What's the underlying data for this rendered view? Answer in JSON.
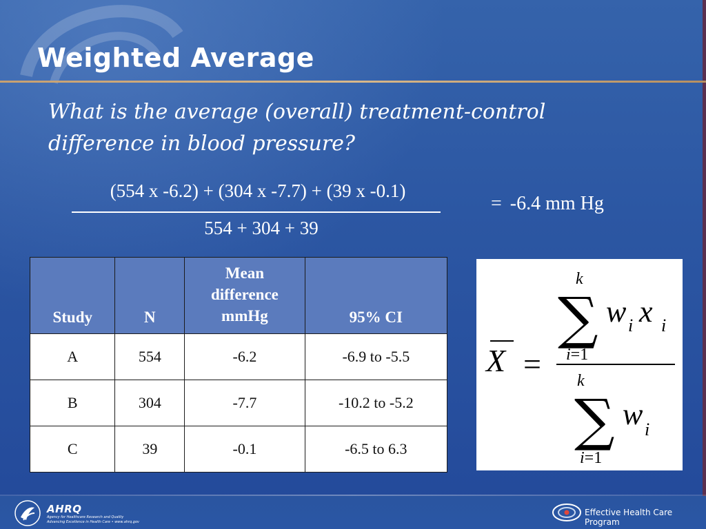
{
  "slide": {
    "title": "Weighted Average",
    "question": "What is the average (overall) treatment-control difference in blood pressure?"
  },
  "calculation": {
    "numerator": "(554 x -6.2) + (304 x -7.7) + (39 x -0.1)",
    "denominator": "554 + 304 + 39",
    "equals": "=",
    "result": "-6.4 mm Hg"
  },
  "table": {
    "headers": {
      "study": "Study",
      "n": "N",
      "mean_line1": "Mean",
      "mean_line2": "difference",
      "mean_line3": "mmHg",
      "ci": "95% CI"
    },
    "rows": [
      {
        "study": "A",
        "n": "554",
        "mean": "-6.2",
        "ci": "-6.9 to -5.5"
      },
      {
        "study": "B",
        "n": "304",
        "mean": "-7.7",
        "ci": "-10.2 to -5.2"
      },
      {
        "study": "C",
        "n": "39",
        "mean": "-0.1",
        "ci": "-6.5 to 6.3"
      }
    ]
  },
  "formula": {
    "lhs": "X",
    "equals": "=",
    "upper_limit": "k",
    "lower_index": "i",
    "lower_eq": "=",
    "lower_start": "1",
    "sigma": "∑",
    "weight": "w",
    "value": "x",
    "subscript": "i"
  },
  "footer": {
    "agency_name": "AHRQ",
    "agency_sub1": "Agency for Healthcare Research and Quality",
    "agency_sub2": "Advancing Excellence in Health Care • www.ahrq.gov",
    "program_name": "Effective Health Care Program"
  },
  "colors": {
    "background": "#2c57a3",
    "header_fill": "#5b7bbd",
    "title_rule": "#d8b88a"
  }
}
